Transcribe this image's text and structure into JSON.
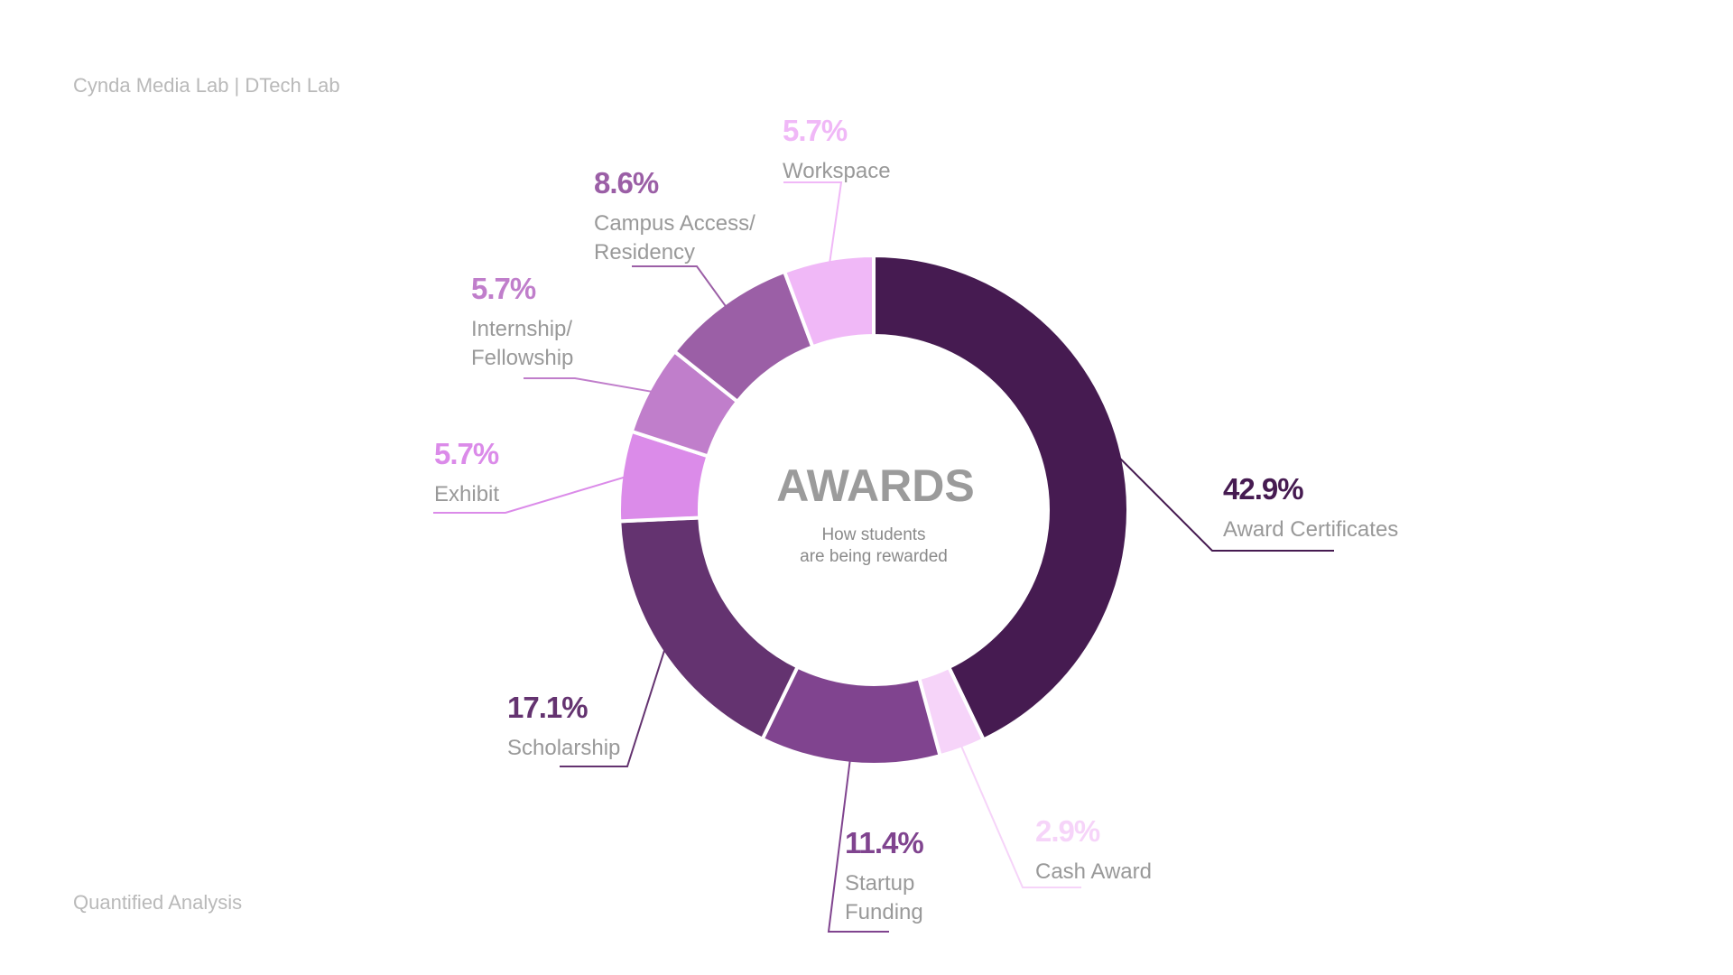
{
  "header": {
    "text": "Cynda Media Lab | DTech Lab"
  },
  "footer": {
    "text": "Quantified Analysis"
  },
  "center": {
    "title": "AWARDS",
    "subtitle_lines": [
      "How students",
      "are being rewarded"
    ]
  },
  "chart_data": {
    "type": "pie",
    "variant": "donut",
    "slices": [
      {
        "label_lines": [
          "Award Certificates"
        ],
        "value": 42.9,
        "pct_text": "42.9%",
        "color": "#461b51",
        "label_side": "right"
      },
      {
        "label_lines": [
          "Cash Award"
        ],
        "value": 2.9,
        "pct_text": "2.9%",
        "color": "#f6d4f9",
        "label_side": "right"
      },
      {
        "label_lines": [
          "Startup",
          "Funding"
        ],
        "value": 11.4,
        "pct_text": "11.4%",
        "color": "#80448f",
        "label_side": "right"
      },
      {
        "label_lines": [
          "Scholarship"
        ],
        "value": 17.1,
        "pct_text": "17.1%",
        "color": "#643370",
        "label_side": "left"
      },
      {
        "label_lines": [
          "Exhibit"
        ],
        "value": 5.7,
        "pct_text": "5.7%",
        "color": "#db8be9",
        "label_side": "left"
      },
      {
        "label_lines": [
          "Internship/",
          "Fellowship"
        ],
        "value": 5.7,
        "pct_text": "5.7%",
        "color": "#c07ecb",
        "label_side": "left"
      },
      {
        "label_lines": [
          "Campus Access/",
          "Residency"
        ],
        "value": 8.6,
        "pct_text": "8.6%",
        "color": "#9b5fa6",
        "label_side": "left"
      },
      {
        "label_lines": [
          "Workspace"
        ],
        "value": 5.7,
        "pct_text": "5.7%",
        "color": "#f0b8f7",
        "label_side": "left"
      }
    ]
  }
}
